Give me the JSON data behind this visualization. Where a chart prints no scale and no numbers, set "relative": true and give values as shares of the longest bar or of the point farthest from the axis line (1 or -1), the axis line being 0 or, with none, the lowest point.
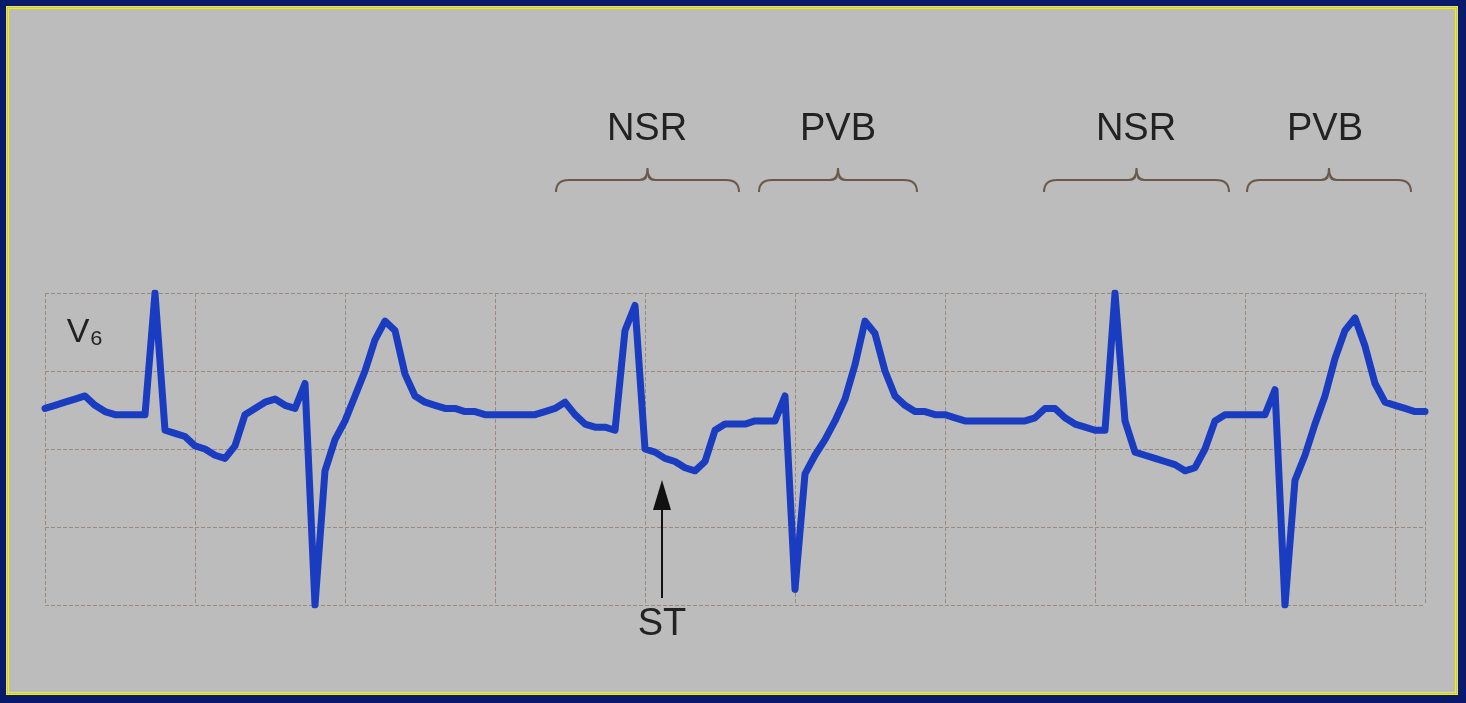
{
  "chart_data": {
    "type": "line",
    "relative": true,
    "grid": true,
    "marker": "none",
    "line_style": "solid",
    "annotations": [
      "V₆",
      "NSR",
      "PVB",
      "NSR",
      "PVB",
      "ST"
    ],
    "categories": [
      null,
      null,
      null,
      null,
      null,
      null,
      null,
      null,
      null,
      null,
      null,
      null,
      null,
      null,
      null,
      null,
      null,
      null,
      null,
      null,
      null,
      null,
      null,
      null,
      null,
      null,
      null,
      null,
      null,
      null,
      null,
      null,
      null,
      null,
      null,
      null,
      null,
      null,
      null,
      null,
      null,
      null,
      null,
      null,
      null,
      null,
      null,
      null,
      null,
      null,
      null,
      null,
      null,
      null,
      null,
      null,
      null,
      null,
      null,
      null,
      null,
      null,
      null,
      null,
      null,
      null,
      null,
      null,
      null,
      null,
      null,
      null,
      null,
      null,
      null,
      null,
      null,
      null,
      null,
      null,
      null,
      null,
      null,
      null,
      null,
      null,
      null,
      null,
      null,
      null,
      null,
      null,
      null,
      null,
      null,
      null,
      null,
      null,
      null,
      null,
      null,
      null,
      null,
      null,
      null,
      null,
      null,
      null,
      null,
      null,
      null,
      null,
      null,
      null,
      null,
      null,
      null,
      null,
      null,
      null,
      null,
      null,
      null,
      null,
      null,
      null,
      null,
      null,
      null,
      null,
      null,
      null,
      null,
      null,
      null,
      null,
      null,
      null,
      null
    ],
    "series": [
      {
        "color": "#1a3cc0",
        "values": [
          0.63,
          0.64,
          0.65,
          0.66,
          0.67,
          0.64,
          0.62,
          0.61,
          0.61,
          0.61,
          0.61,
          1,
          0.56,
          0.55,
          0.54,
          0.51,
          0.5,
          0.48,
          0.47,
          0.51,
          0.61,
          0.63,
          0.65,
          0.66,
          0.64,
          0.63,
          0.71,
          0,
          0.43,
          0.53,
          0.59,
          0.67,
          0.75,
          0.85,
          0.91,
          0.88,
          0.74,
          0.67,
          0.65,
          0.64,
          0.63,
          0.63,
          0.62,
          0.62,
          0.61,
          0.61,
          0.61,
          0.61,
          0.61,
          0.61,
          0.62,
          0.63,
          0.65,
          0.61,
          0.58,
          0.57,
          0.57,
          0.56,
          0.88,
          0.96,
          0.5,
          0.49,
          0.47,
          0.46,
          0.44,
          0.43,
          0.46,
          0.56,
          0.58,
          0.58,
          0.58,
          0.59,
          0.59,
          0.59,
          0.67,
          0.05,
          0.42,
          0.48,
          0.53,
          0.59,
          0.66,
          0.77,
          0.91,
          0.87,
          0.75,
          0.67,
          0.64,
          0.62,
          0.62,
          0.61,
          0.61,
          0.6,
          0.59,
          0.59,
          0.59,
          0.59,
          0.59,
          0.59,
          0.59,
          0.6,
          0.63,
          0.63,
          0.6,
          0.58,
          0.57,
          0.56,
          0.56,
          1,
          0.59,
          0.49,
          0.48,
          0.47,
          0.46,
          0.45,
          0.43,
          0.44,
          0.5,
          0.59,
          0.61,
          0.61,
          0.61,
          0.61,
          0.61,
          0.69,
          0,
          0.4,
          0.48,
          0.58,
          0.67,
          0.79,
          0.88,
          0.92,
          0.83,
          0.71,
          0.65,
          0.64,
          0.63,
          0.62,
          0.62
        ]
      }
    ]
  }
}
